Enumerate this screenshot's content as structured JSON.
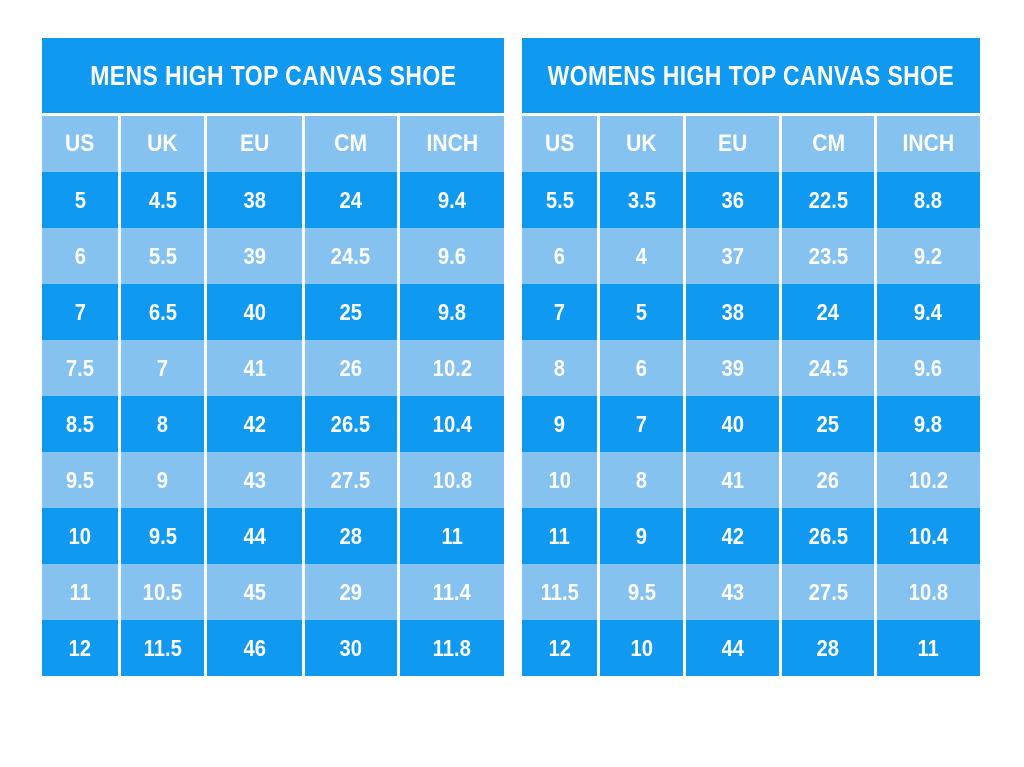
{
  "colors": {
    "primary_blue": "#0f99f0",
    "light_blue": "#85c2ef",
    "text_white": "#ffffff",
    "page_background": "#ffffff"
  },
  "chart_data": [
    {
      "type": "table",
      "title": "MENS HIGH TOP CANVAS SHOE",
      "columns": [
        "US",
        "UK",
        "EU",
        "CM",
        "INCH"
      ],
      "rows": [
        [
          "5",
          "4.5",
          "38",
          "24",
          "9.4"
        ],
        [
          "6",
          "5.5",
          "39",
          "24.5",
          "9.6"
        ],
        [
          "7",
          "6.5",
          "40",
          "25",
          "9.8"
        ],
        [
          "7.5",
          "7",
          "41",
          "26",
          "10.2"
        ],
        [
          "8.5",
          "8",
          "42",
          "26.5",
          "10.4"
        ],
        [
          "9.5",
          "9",
          "43",
          "27.5",
          "10.8"
        ],
        [
          "10",
          "9.5",
          "44",
          "28",
          "11"
        ],
        [
          "11",
          "10.5",
          "45",
          "29",
          "11.4"
        ],
        [
          "12",
          "11.5",
          "46",
          "30",
          "11.8"
        ]
      ]
    },
    {
      "type": "table",
      "title": "WOMENS HIGH TOP CANVAS SHOE",
      "columns": [
        "US",
        "UK",
        "EU",
        "CM",
        "INCH"
      ],
      "rows": [
        [
          "5.5",
          "3.5",
          "36",
          "22.5",
          "8.8"
        ],
        [
          "6",
          "4",
          "37",
          "23.5",
          "9.2"
        ],
        [
          "7",
          "5",
          "38",
          "24",
          "9.4"
        ],
        [
          "8",
          "6",
          "39",
          "24.5",
          "9.6"
        ],
        [
          "9",
          "7",
          "40",
          "25",
          "9.8"
        ],
        [
          "10",
          "8",
          "41",
          "26",
          "10.2"
        ],
        [
          "11",
          "9",
          "42",
          "26.5",
          "10.4"
        ],
        [
          "11.5",
          "9.5",
          "43",
          "27.5",
          "10.8"
        ],
        [
          "12",
          "10",
          "44",
          "28",
          "11"
        ]
      ]
    }
  ]
}
